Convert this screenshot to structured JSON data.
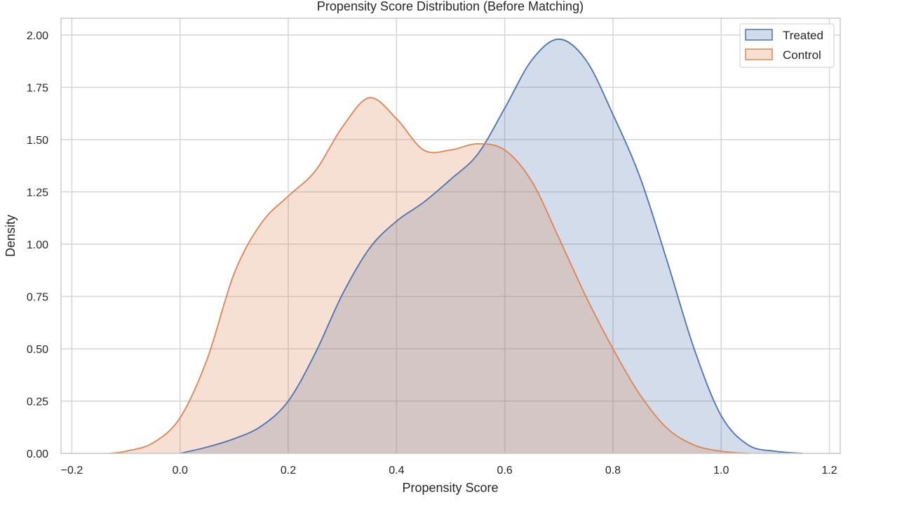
{
  "chart_data": {
    "type": "area",
    "title": "Propensity Score Distribution (Before Matching)",
    "xlabel": "Propensity Score",
    "ylabel": "Density",
    "xlim": [
      -0.22,
      1.22
    ],
    "ylim": [
      0,
      2.08
    ],
    "x_ticks": [
      -0.2,
      0.0,
      0.2,
      0.4,
      0.6,
      0.8,
      1.0,
      1.2
    ],
    "x_tick_labels": [
      "−0.2",
      "0.0",
      "0.2",
      "0.4",
      "0.6",
      "0.8",
      "1.0",
      "1.2"
    ],
    "y_ticks": [
      0.0,
      0.25,
      0.5,
      0.75,
      1.0,
      1.25,
      1.5,
      1.75,
      2.0
    ],
    "y_tick_labels": [
      "0.00",
      "0.25",
      "0.50",
      "0.75",
      "1.00",
      "1.25",
      "1.50",
      "1.75",
      "2.00"
    ],
    "grid": true,
    "legend_position": "top-right",
    "series": [
      {
        "name": "Treated",
        "color": "#4c72b0",
        "x": [
          0.0,
          0.05,
          0.1,
          0.15,
          0.2,
          0.25,
          0.3,
          0.35,
          0.4,
          0.45,
          0.5,
          0.55,
          0.6,
          0.65,
          0.7,
          0.75,
          0.8,
          0.85,
          0.9,
          0.95,
          1.0,
          1.05,
          1.1,
          1.15
        ],
        "y": [
          0.0,
          0.03,
          0.07,
          0.13,
          0.25,
          0.48,
          0.76,
          0.98,
          1.11,
          1.2,
          1.31,
          1.43,
          1.65,
          1.88,
          1.98,
          1.88,
          1.62,
          1.32,
          0.92,
          0.5,
          0.18,
          0.04,
          0.01,
          0.0
        ]
      },
      {
        "name": "Control",
        "color": "#dd8452",
        "x": [
          -0.13,
          -0.1,
          -0.05,
          0.0,
          0.05,
          0.1,
          0.15,
          0.2,
          0.25,
          0.3,
          0.35,
          0.4,
          0.45,
          0.5,
          0.55,
          0.6,
          0.65,
          0.7,
          0.75,
          0.8,
          0.85,
          0.9,
          0.95,
          1.0,
          1.05
        ],
        "y": [
          0.0,
          0.01,
          0.05,
          0.17,
          0.45,
          0.86,
          1.1,
          1.23,
          1.35,
          1.56,
          1.7,
          1.6,
          1.45,
          1.45,
          1.48,
          1.45,
          1.3,
          1.03,
          0.75,
          0.5,
          0.28,
          0.12,
          0.04,
          0.01,
          0.0
        ]
      }
    ]
  }
}
